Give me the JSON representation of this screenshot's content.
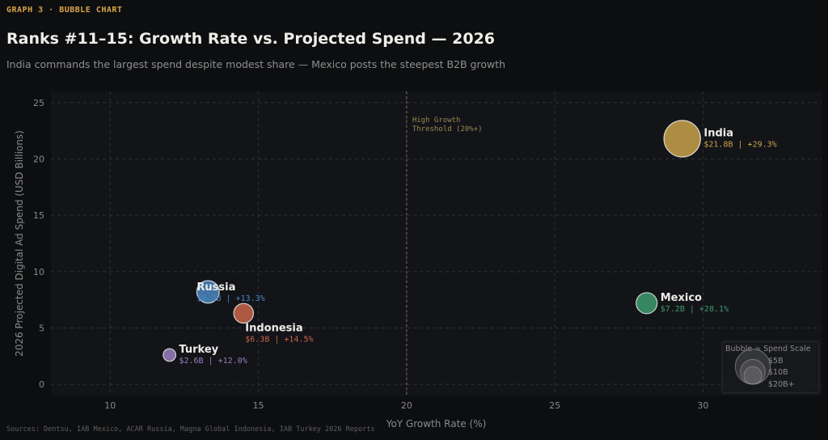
{
  "header": {
    "eyebrow": "GRAPH 3  ·  BUBBLE CHART",
    "title": "Ranks #11–15: Growth Rate vs. Projected Spend — 2026",
    "subtitle": "India commands the largest spend despite modest share — Mexico posts the steepest B2B growth"
  },
  "footer": {
    "sources": "Sources: Dentsu, IAB Mexico, ACAR Russia, Magna Global Indonesia, IAB Turkey 2026 Reports"
  },
  "chart_data": {
    "type": "scatter",
    "xlabel": "YoY Growth Rate (%)",
    "ylabel": "2026 Projected Digital Ad Spend (USD Billions)",
    "xlim": [
      8,
      34
    ],
    "ylim": [
      -1,
      26
    ],
    "xticks": [
      10,
      15,
      20,
      25,
      30
    ],
    "yticks": [
      0,
      5,
      10,
      15,
      20,
      25
    ],
    "grid": true,
    "threshold": {
      "x": 20,
      "label_line1": "High Growth",
      "label_line2": "Threshold (20%+)",
      "color": "#9a8850"
    },
    "points": [
      {
        "name": "India",
        "x": 29.3,
        "y": 21.8,
        "size": 21.8,
        "color": "#c9a24a",
        "spend_label": "$21.8B",
        "growth_label": "+29.3%",
        "label_anchor": "right"
      },
      {
        "name": "Mexico",
        "x": 28.1,
        "y": 7.2,
        "size": 7.2,
        "color": "#3f9a6e",
        "spend_label": "$7.2B",
        "growth_label": "+28.1%",
        "label_anchor": "right"
      },
      {
        "name": "Russia",
        "x": 13.3,
        "y": 8.2,
        "size": 8.2,
        "color": "#4a86c0",
        "spend_label": "$8.2B",
        "growth_label": "+13.3%",
        "label_anchor": "over"
      },
      {
        "name": "Indonesia",
        "x": 14.5,
        "y": 6.3,
        "size": 6.3,
        "color": "#c9654a",
        "spend_label": "$6.3B",
        "growth_label": "+14.5%",
        "label_anchor": "below"
      },
      {
        "name": "Turkey",
        "x": 12.0,
        "y": 2.6,
        "size": 2.6,
        "color": "#9a7fc0",
        "spend_label": "$2.6B",
        "growth_label": "+12.0%",
        "label_anchor": "right"
      }
    ],
    "legend": {
      "title": "Bubble = Spend Scale",
      "placement": "bottom-right",
      "items": [
        {
          "label": "$5B",
          "size": 5
        },
        {
          "label": "$10B",
          "size": 10
        },
        {
          "label": "$20B+",
          "size": 20
        }
      ]
    },
    "colors": {
      "axis_text": "#8a8a8a",
      "grid": "#2e3036",
      "plot_bg": "#131418"
    }
  }
}
